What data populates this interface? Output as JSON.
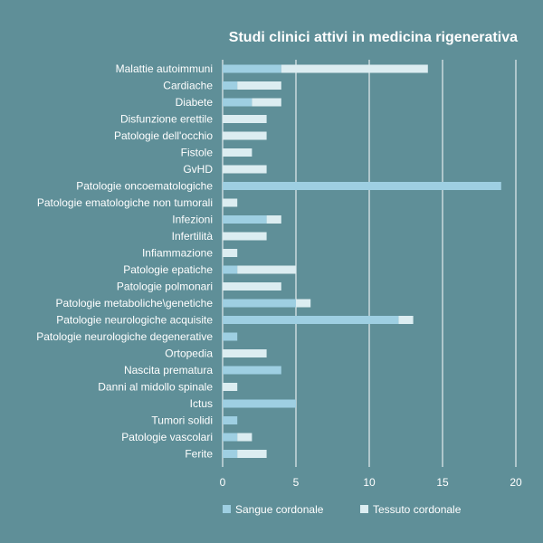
{
  "chart_data": {
    "type": "bar",
    "orientation": "horizontal",
    "stacked": true,
    "title": "Studi clinici attivi in medicina rigenerativa",
    "xlabel": "",
    "ylabel": "",
    "xlim": [
      0,
      20
    ],
    "xticks": [
      0,
      5,
      10,
      15,
      20
    ],
    "grid": true,
    "legend_position": "bottom",
    "categories": [
      "Malattie autoimmuni",
      "Cardiache",
      "Diabete",
      "Disfunzione erettile",
      "Patologie dell'occhio",
      "Fistole",
      "GvHD",
      "Patologie oncoematologiche",
      "Patologie ematologiche non tumorali",
      "Infezioni",
      "Infertilità",
      "Infiammazione",
      "Patologie epatiche",
      "Patologie polmonari",
      "Patologie metaboliche\\genetiche",
      "Patologie neurologiche acquisite",
      "Patologie neurologiche degenerative",
      "Ortopedia",
      "Nascita prematura",
      "Danni al midollo spinale",
      "Ictus",
      "Tumori solidi",
      "Patologie vascolari",
      "Ferite"
    ],
    "series": [
      {
        "name": "Sangue cordonale",
        "color": "#9ecfe2",
        "values": [
          4,
          1,
          2,
          0,
          0,
          0,
          0,
          19,
          0,
          3,
          0,
          0,
          1,
          0,
          5,
          12,
          1,
          0,
          4,
          0,
          5,
          1,
          1,
          1
        ]
      },
      {
        "name": "Tessuto cordonale",
        "color": "#dcedf1",
        "values": [
          10,
          3,
          2,
          3,
          3,
          2,
          3,
          0,
          1,
          1,
          3,
          1,
          4,
          4,
          1,
          1,
          0,
          3,
          0,
          1,
          0,
          0,
          1,
          2
        ]
      }
    ]
  }
}
